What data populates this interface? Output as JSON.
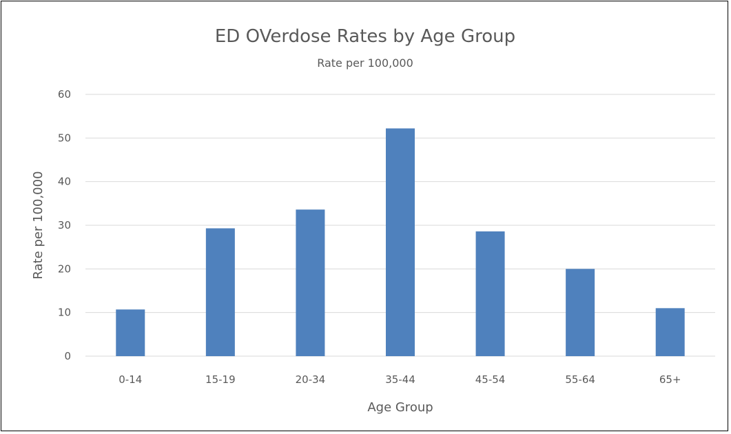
{
  "chart_data": {
    "type": "bar",
    "title": "ED OVerdose Rates by Age Group",
    "subtitle": "Rate per 100,000",
    "xlabel": "Age Group",
    "ylabel": "Rate per 100,000",
    "categories": [
      "0-14",
      "15-19",
      "20-34",
      "35-44",
      "45-54",
      "55-64",
      "65+"
    ],
    "values": [
      10.7,
      29.3,
      33.6,
      52.2,
      28.6,
      20.0,
      11.0
    ],
    "ylim": [
      0,
      60
    ],
    "yticks": [
      0,
      10,
      20,
      30,
      40,
      50,
      60
    ],
    "grid": true,
    "legend": "none",
    "colors": {
      "bar": "#4f81bd",
      "grid": "#d9d9d9",
      "axis": "#d9d9d9",
      "text": "#595959"
    }
  }
}
